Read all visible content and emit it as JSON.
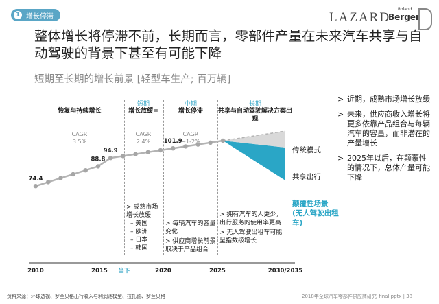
{
  "header": {
    "badge_number": "1",
    "badge_label": "增长停滞",
    "logo_lazard": "LAZARD",
    "logo_rb_small": "Roland",
    "logo_rb_big": "Berger"
  },
  "title": "整体增长将停滞不前，长期而言，零部件产量在未来汽车共享与自动驾驶的背景下甚至有可能下降",
  "subtitle": "短期至长期的增长前景 [轻型车生产; 百万辆]",
  "columns": [
    {
      "phase": "",
      "heading": "恢复与持续增长",
      "cagr_label": "CAGR",
      "cagr_value": "3.5%"
    },
    {
      "phase": "短期",
      "heading": "增长放缓=",
      "cagr_label": "CAGR",
      "cagr_value": "2.4%"
    },
    {
      "phase": "中期",
      "heading": "增长停滞",
      "cagr_label": "CAGR",
      "cagr_value": "~1-2%"
    },
    {
      "phase": "长期",
      "heading": "共享与自动驾驶解决方案出现",
      "cagr_label": "",
      "cagr_value": ""
    }
  ],
  "notes": {
    "short": [
      "> 成熟市场增长放缓",
      "– 美国",
      "– 欧洲",
      "– 日本",
      "– 韩国"
    ],
    "mid": [
      "> 每辆汽车的容量变化",
      "> 供应商增长前景取决于产品组合"
    ],
    "long": [
      "> 拥有汽车的人更少，出行服务的使用率更高",
      "> 无人驾驶出租车可能呈指数级增长"
    ]
  },
  "scenario_labels": {
    "traditional": "传统模式",
    "sharing": "共享出行",
    "disruptive": "颠覆性场景 (无人驾驶出租车)",
    "question": "?"
  },
  "bullets": [
    "近期，成熟市场增长放缓",
    "未来，供应商收入增长将更多依靠产品组合与每辆汽车的容量，而非潜在的产量增长",
    "2025年以后，在颠覆性的情况下，总体产量可能下降"
  ],
  "bullet_marker": ">",
  "chart_data": {
    "type": "line",
    "x_tick_labels": [
      "2010",
      "2015",
      "当下",
      "2020",
      "2025",
      "2030/2035"
    ],
    "series": [
      {
        "x": [
          2010,
          2011,
          2012,
          2013,
          2014,
          2015,
          2016,
          2017,
          2018,
          2019,
          2020,
          2021,
          2022,
          2023,
          2024,
          2025
        ],
        "values": [
          74.4,
          77.3,
          80.2,
          83.0,
          85.9,
          88.8,
          94.9,
          96.3,
          97.7,
          99.1,
          100.5,
          101.9,
          103.3,
          104.7,
          106.1,
          107.5
        ]
      }
    ],
    "data_labels": [
      {
        "x": 2010,
        "value": 74.4,
        "text": "74.4"
      },
      {
        "x": 2015,
        "value": 88.8,
        "text": "88.8"
      },
      {
        "x": 2016,
        "value": 94.9,
        "text": "94.9"
      },
      {
        "x": 2021,
        "value": 101.9,
        "text": "101.9"
      }
    ],
    "xlim": [
      2010,
      2030
    ],
    "ylim": [
      60,
      120
    ],
    "colors": {
      "line": "#b3b3b3",
      "disruptive": "#2aa6c6",
      "sharing": "#d9d9d9",
      "phase": "#3aa8c8"
    }
  },
  "footer": {
    "source": "资料来源：环球透视、罗兰贝格出行收入与利润池模型、拉扎德、罗兰贝格",
    "right": "2018年全球汽车零部件供应商研究_final.pptx | 38"
  }
}
